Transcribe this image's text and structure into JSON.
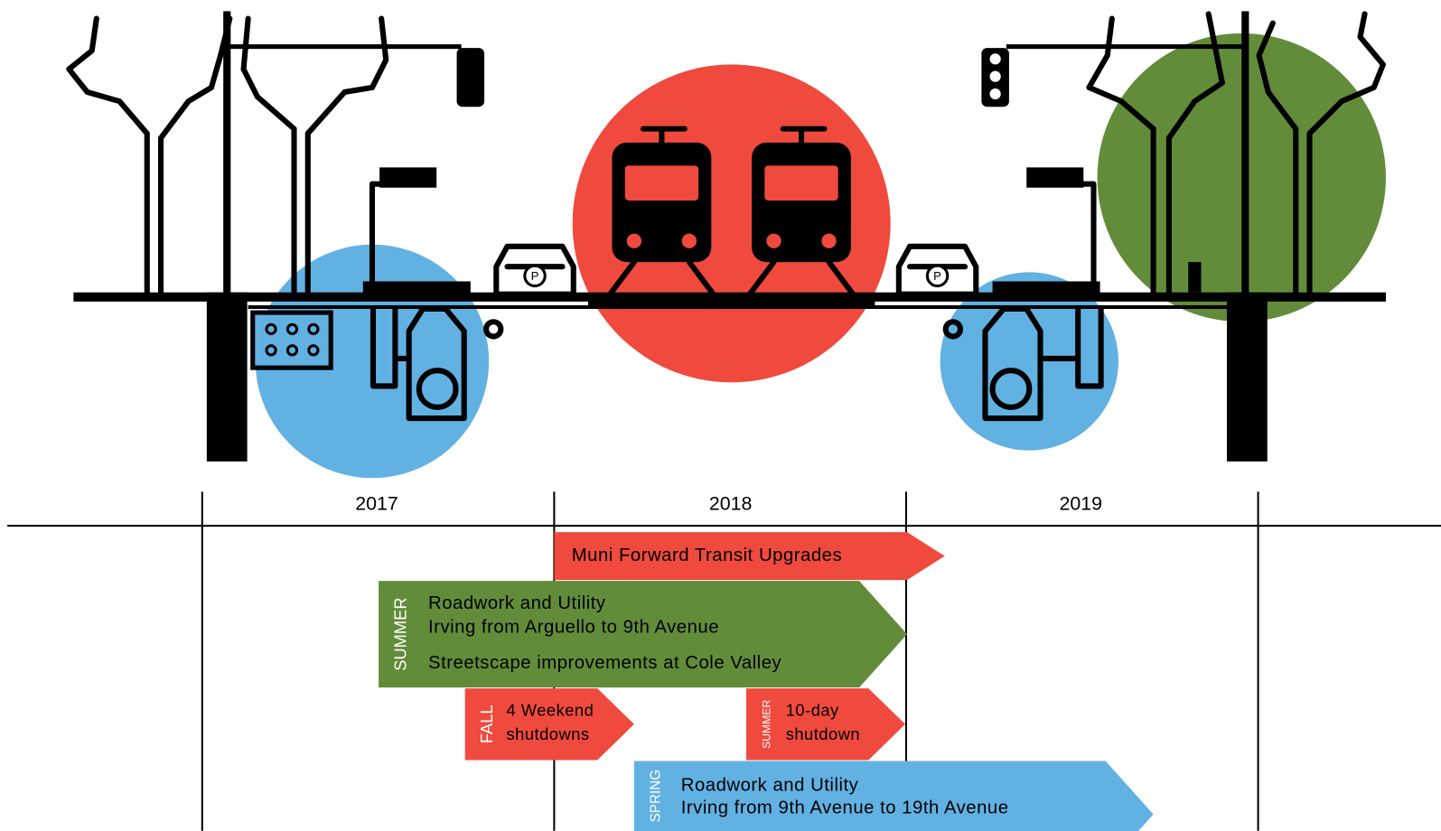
{
  "timeline": {
    "years": [
      "2017",
      "2018",
      "2019"
    ]
  },
  "phases": [
    {
      "lines": [
        "Muni Forward Transit Upgrades"
      ]
    },
    {
      "season": "SUMMER",
      "lines": [
        "Roadwork and Utility",
        "Irving from Arguello to 9th Avenue",
        "Streetscape improvements at Cole Valley"
      ]
    },
    {
      "season": "FALL",
      "lines": [
        "4 Weekend",
        "shutdowns"
      ]
    },
    {
      "season": "SUMMER",
      "lines": [
        "10-day",
        "shutdown"
      ]
    },
    {
      "season": "SPRING",
      "lines": [
        "Roadwork and Utility",
        "Irving from 9th Avenue to 19th Avenue"
      ]
    }
  ]
}
